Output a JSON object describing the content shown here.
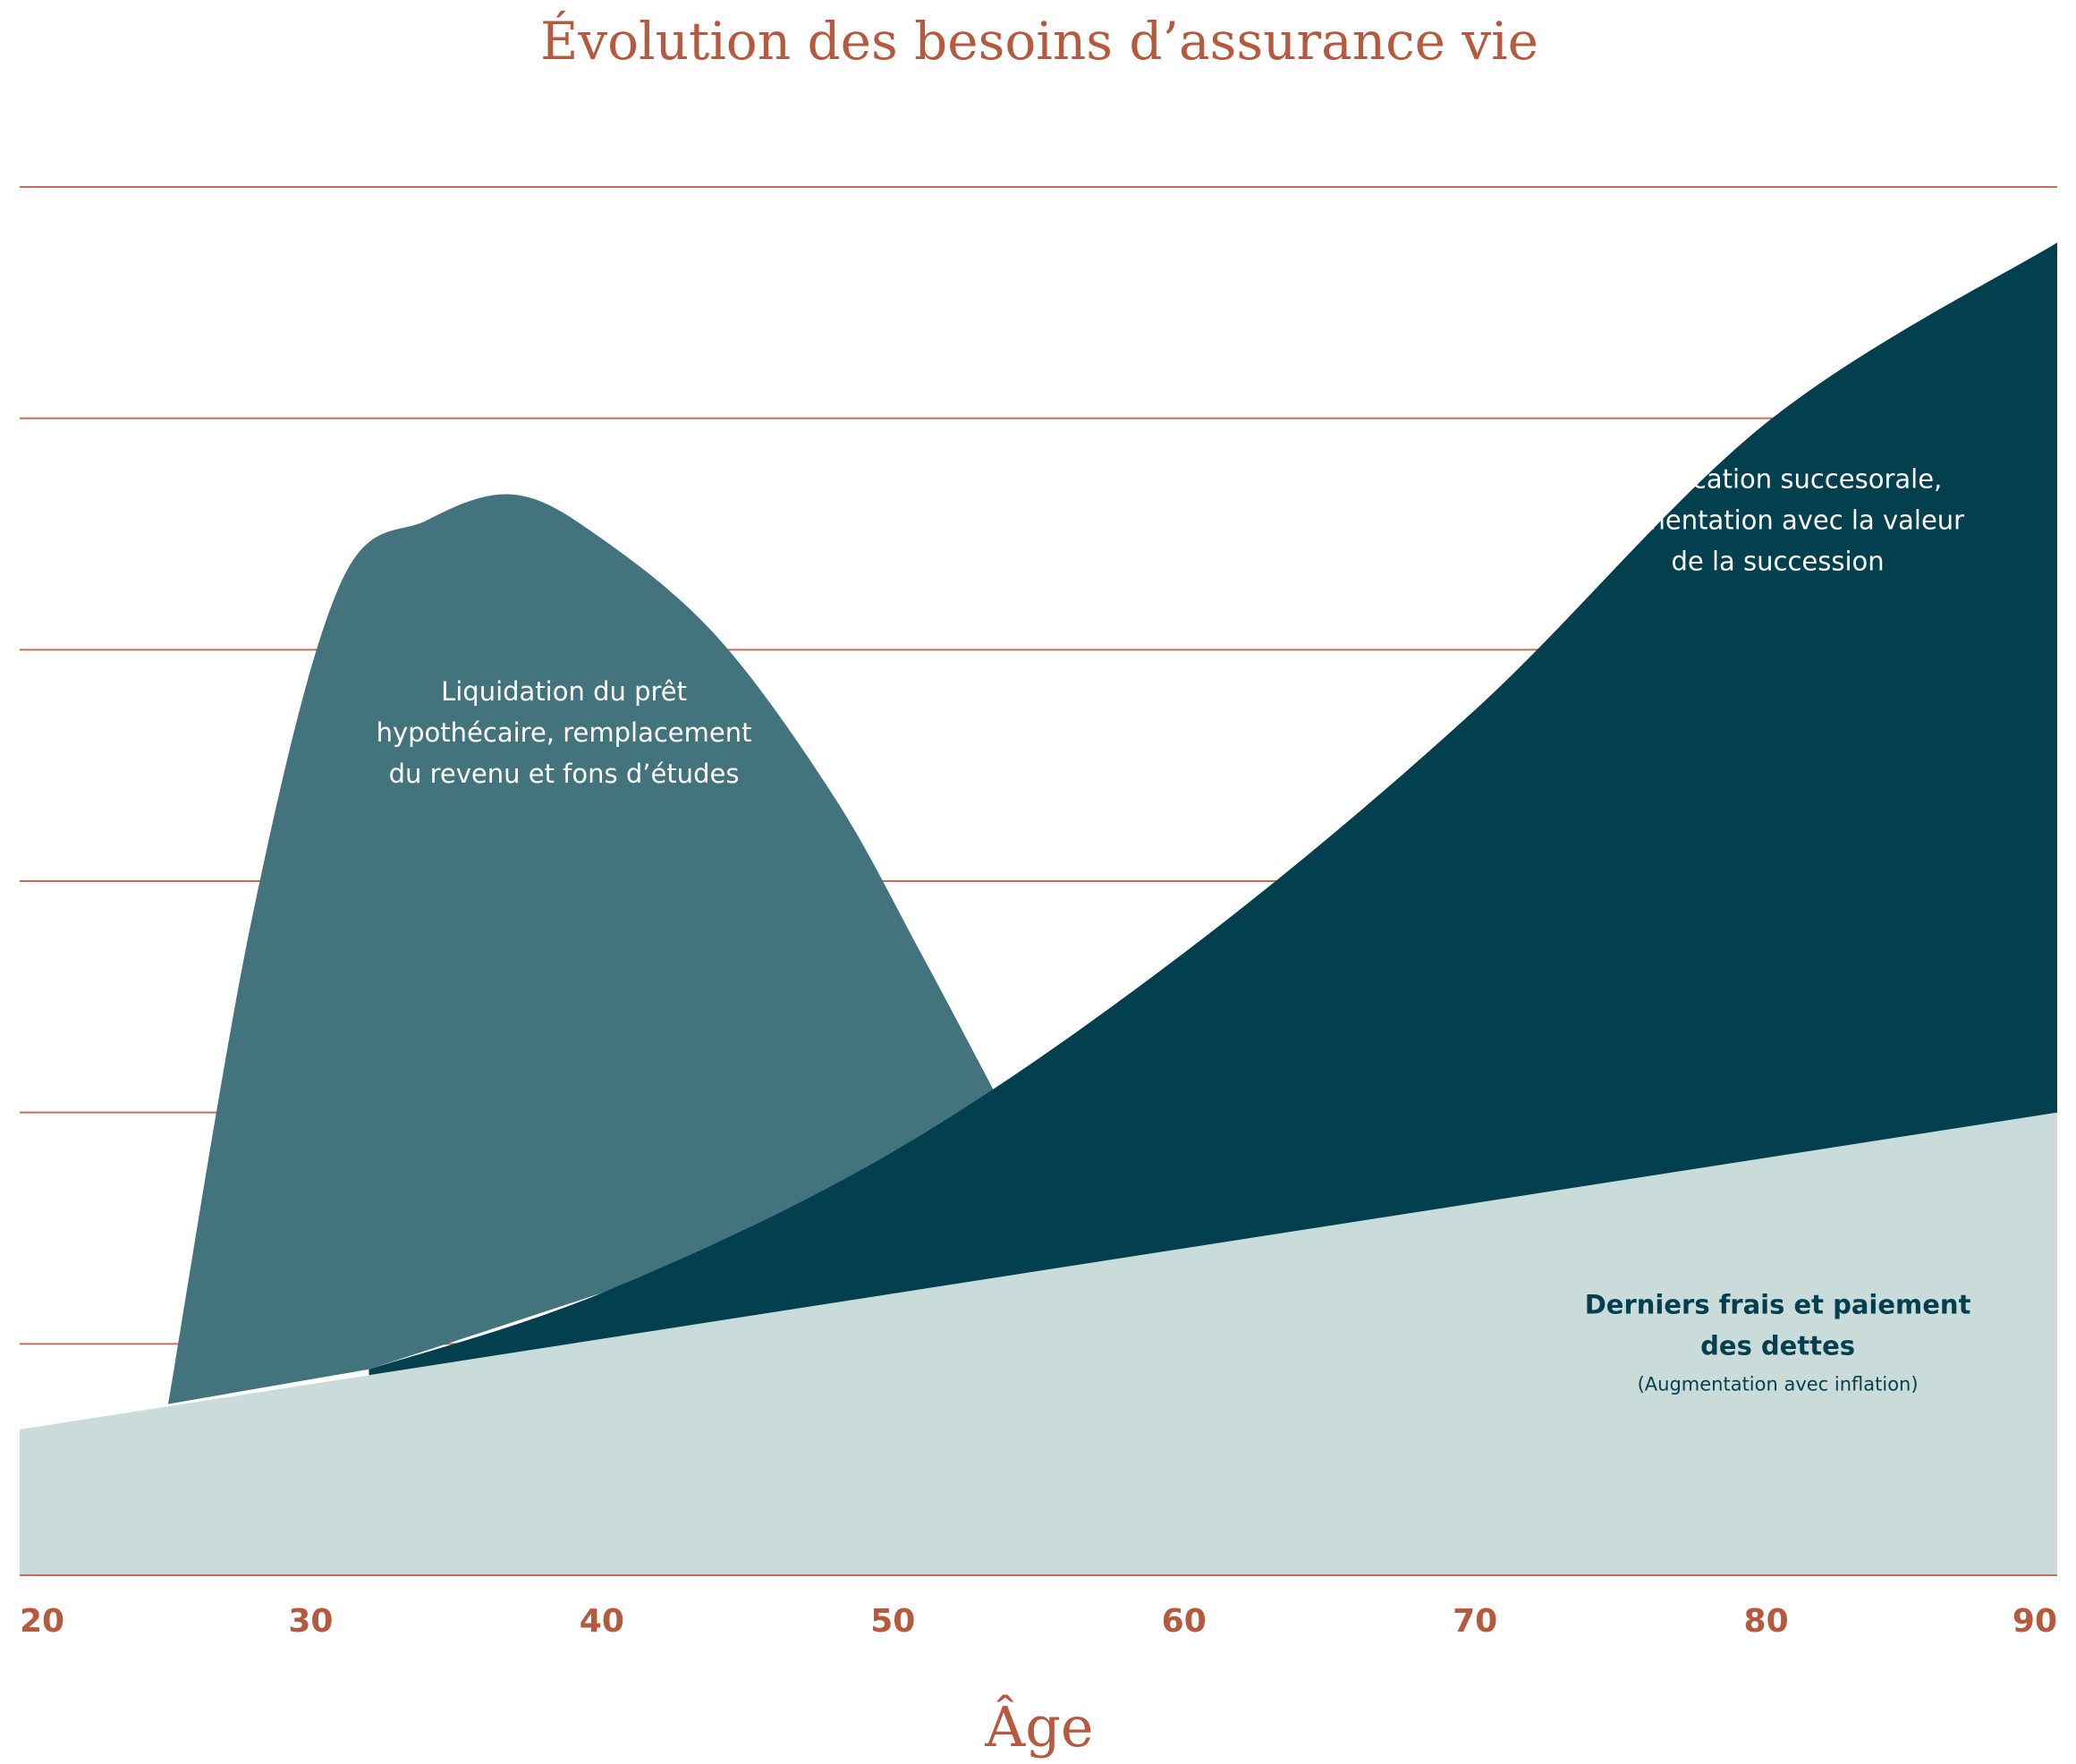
{
  "chart_data": {
    "type": "area",
    "title": "Évolution des besoins d’assurance vie",
    "xlabel": "Âge",
    "ylabel": "",
    "xlim": [
      20,
      90
    ],
    "ylim": [
      0,
      6
    ],
    "x_ticks": [
      20,
      30,
      40,
      50,
      60,
      70,
      80,
      90
    ],
    "x_tick_labels": [
      "20",
      "30",
      "40",
      "50",
      "60",
      "70",
      "80",
      "90"
    ],
    "y_gridlines": [
      1,
      2,
      3,
      4,
      5,
      6
    ],
    "grid": true,
    "legend": "none",
    "series": [
      {
        "annotation": [
          "Derniers frais et paiement",
          "des dettes"
        ],
        "sub_annotation": "(Augmentation avec inflation)",
        "color": "#cadcda",
        "text_color": "#033f4f",
        "points": [
          [
            20,
            0.63
          ],
          [
            90,
            2.0
          ]
        ]
      },
      {
        "annotation": [
          "Planification succesorale,",
          "augmentation avec la valeur",
          "de la succession"
        ],
        "color": "#03404f",
        "text_color": "#ffffff",
        "points": [
          [
            32,
            0.89
          ],
          [
            40,
            1.22
          ],
          [
            50,
            1.83
          ],
          [
            60,
            2.69
          ],
          [
            70,
            3.74
          ],
          [
            80,
            4.98
          ],
          [
            90,
            5.76
          ]
        ]
      },
      {
        "annotation": [
          "Liquidation du prêt",
          "hypothécaire, remplacement",
          "du revenu et fons d’études"
        ],
        "color": "#43747e",
        "text_color": "#ffffff",
        "points": [
          [
            25.1,
            0.74
          ],
          [
            28,
            2.85
          ],
          [
            31,
            4.28
          ],
          [
            34,
            4.56
          ],
          [
            37,
            4.67
          ],
          [
            40,
            4.48
          ],
          [
            44,
            4.05
          ],
          [
            48,
            3.36
          ],
          [
            51,
            2.68
          ],
          [
            54.2,
            1.92
          ]
        ]
      }
    ],
    "colors": {
      "title": "#b55a3e",
      "grid": "#c0705a",
      "ticks": "#b55a3e"
    }
  }
}
